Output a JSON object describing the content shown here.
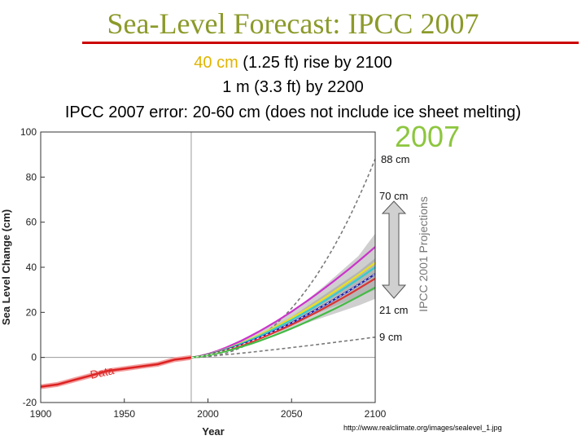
{
  "title": "Sea-Level Forecast: IPCC 2007",
  "subtitle": {
    "line1_highlight": "40 cm",
    "line1_rest": " (1.25 ft) rise by 2100",
    "line2": "1 m (3.3 ft) by 2200",
    "line3": "IPCC 2007 error: 20-60 cm (does not include ice sheet melting)"
  },
  "year_label": "2007",
  "credit": "http://www.realclimate.org/images/sealevel_1.jpg",
  "colors": {
    "title": "#8c9a2a",
    "rule": "#cc0000",
    "highlight": "#e0b400",
    "year_label": "#8dc63f",
    "data": "#e03030",
    "band": "#c8c8c8",
    "dashed": "#7a7a7a"
  },
  "chart_data": {
    "type": "line",
    "title": "",
    "xlabel": "Year",
    "ylabel": "Sea Level Change (cm)",
    "xlim": [
      1900,
      2100
    ],
    "ylim": [
      -20,
      100
    ],
    "x_ticks": [
      "1900",
      "1950",
      "2000",
      "2050",
      "2100"
    ],
    "y_ticks": [
      "-20",
      "0",
      "20",
      "40",
      "60",
      "80",
      "100"
    ],
    "vertical_line_x": 1990,
    "data_label": "Data",
    "observed": {
      "name": "Data",
      "x": [
        1900,
        1910,
        1920,
        1930,
        1940,
        1950,
        1960,
        1970,
        1980,
        1985,
        1990
      ],
      "y": [
        -13,
        -12,
        -10,
        -8,
        -6,
        -5,
        -4,
        -3,
        -1,
        -0.5,
        0
      ]
    },
    "band_outer": {
      "x": [
        1990,
        2010,
        2030,
        2050,
        2070,
        2090,
        2100
      ],
      "lower": [
        0,
        3,
        8,
        13,
        18,
        23,
        26
      ],
      "upper": [
        0,
        4,
        11,
        20,
        32,
        45,
        55
      ]
    },
    "band_inner": {
      "x": [
        1990,
        2010,
        2030,
        2050,
        2070,
        2090,
        2100
      ],
      "lower": [
        0,
        3.5,
        9,
        15,
        21,
        27,
        30
      ],
      "upper": [
        0,
        3.8,
        10,
        18,
        28,
        38,
        44
      ]
    },
    "scenarios": [
      {
        "name": "magenta",
        "color": "#cc33cc",
        "y_end": 49
      },
      {
        "name": "yellow",
        "color": "#e8e020",
        "y_end": 42
      },
      {
        "name": "cyan",
        "color": "#33cccc",
        "y_end": 40
      },
      {
        "name": "blue",
        "color": "#1a1aaa",
        "y_end": 37
      },
      {
        "name": "red",
        "color": "#dd3333",
        "y_end": 35
      },
      {
        "name": "green",
        "color": "#44bb44",
        "y_end": 31
      }
    ],
    "bounds": [
      {
        "name": "upper-bound",
        "y_end": 88
      },
      {
        "name": "lower-bound",
        "y_end": 9
      }
    ],
    "annotations": {
      "top": "88 cm",
      "upper_range": "70 cm",
      "lower_range": "21 cm",
      "bottom": "9 cm",
      "vertical_label": "IPCC 2001 Projections"
    }
  }
}
